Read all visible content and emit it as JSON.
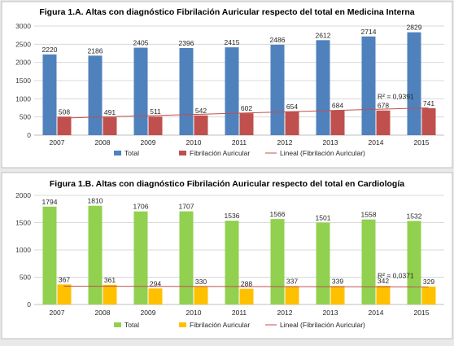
{
  "chart_data": [
    {
      "type": "bar",
      "title": "Figura 1.A. Altas con diagnóstico Fibrilación Auricular respecto del total en Medicina Interna",
      "categories": [
        "2007",
        "2008",
        "2009",
        "2010",
        "2011",
        "2012",
        "2013",
        "2014",
        "2015"
      ],
      "series": [
        {
          "name": "Total",
          "color": "#4f81bd",
          "values": [
            2220,
            2186,
            2405,
            2396,
            2415,
            2486,
            2612,
            2714,
            2829
          ]
        },
        {
          "name": "Fibrilación Auricular",
          "color": "#c0504d",
          "values": [
            508,
            491,
            511,
            542,
            602,
            654,
            684,
            678,
            741
          ]
        }
      ],
      "trendline": {
        "name": "Lineal (Fibrilación Auricular)",
        "color": "#c0504d",
        "r2_label": "R² = 0,9391",
        "start": 470,
        "end": 750
      },
      "ylim": [
        0,
        3000
      ],
      "yticks": [
        0,
        500,
        1000,
        1500,
        2000,
        2500,
        3000
      ],
      "grid": true,
      "legend": "bottom"
    },
    {
      "type": "bar",
      "title": "Figura 1.B. Altas con diagnóstico Fibrilación Auricular respecto del total en Cardiología",
      "categories": [
        "2007",
        "2008",
        "2009",
        "2010",
        "2011",
        "2012",
        "2013",
        "2014",
        "2015"
      ],
      "series": [
        {
          "name": "Total",
          "color": "#92d050",
          "values": [
            1794,
            1810,
            1706,
            1707,
            1536,
            1566,
            1501,
            1558,
            1532
          ]
        },
        {
          "name": "Fibrilación Auricular",
          "color": "#ffc000",
          "values": [
            367,
            361,
            294,
            330,
            288,
            337,
            339,
            342,
            329
          ]
        }
      ],
      "trendline": {
        "name": "Lineal (Fibrilación Auricular)",
        "color": "#c0504d",
        "r2_label": "R² = 0,0371",
        "start": 335,
        "end": 322
      },
      "ylim": [
        0,
        2000
      ],
      "yticks": [
        0,
        500,
        1000,
        1500,
        2000
      ],
      "grid": true,
      "legend": "bottom"
    }
  ]
}
